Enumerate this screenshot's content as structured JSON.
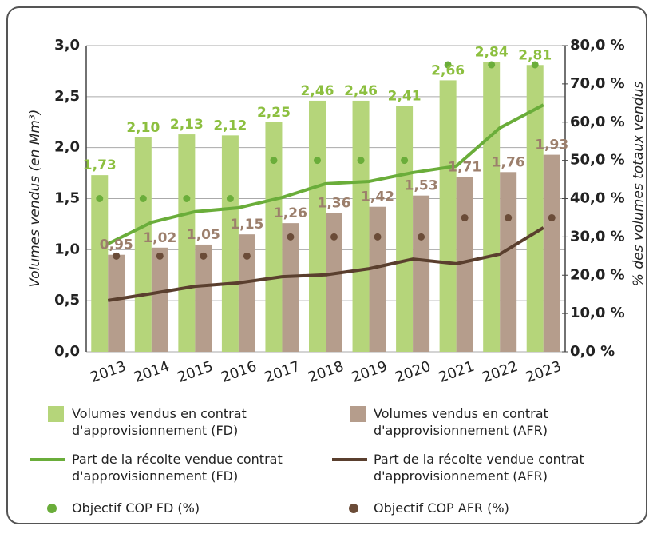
{
  "chart_data": {
    "type": "combo",
    "categories": [
      "2013",
      "2014",
      "2015",
      "2016",
      "2017",
      "2018",
      "2019",
      "2020",
      "2021",
      "2022",
      "2023"
    ],
    "ylabel": "Volumes vendus (en Mm³)",
    "y2label": "% des volumes totaux vendus",
    "ylim": [
      0,
      3
    ],
    "yticks": [
      {
        "value": 0,
        "label": "0,0"
      },
      {
        "value": 0.5,
        "label": "0,5"
      },
      {
        "value": 1,
        "label": "1,0"
      },
      {
        "value": 1.5,
        "label": "1,5"
      },
      {
        "value": 2,
        "label": "2,0"
      },
      {
        "value": 2.5,
        "label": "2,5"
      },
      {
        "value": 3,
        "label": "3,0"
      }
    ],
    "y2lim": [
      0,
      80
    ],
    "y2ticks": [
      {
        "value": 0,
        "label": "0,0 %"
      },
      {
        "value": 10,
        "label": "10,0 %"
      },
      {
        "value": 20,
        "label": "20,0 %"
      },
      {
        "value": 30,
        "label": "30,0 %"
      },
      {
        "value": 40,
        "label": "40,0 %"
      },
      {
        "value": 50,
        "label": "50,0 %"
      },
      {
        "value": 60,
        "label": "60,0 %"
      },
      {
        "value": 70,
        "label": "70,0 %"
      },
      {
        "value": 80,
        "label": "80,0 %"
      }
    ],
    "grid": true,
    "series": [
      {
        "name": "Volumes vendus en contrat d'approvisionnement (FD)",
        "type": "bar",
        "color": "#b5d57a",
        "label_color": "#8cbf3f",
        "values": [
          1.73,
          2.1,
          2.13,
          2.12,
          2.25,
          2.46,
          2.46,
          2.41,
          2.66,
          2.84,
          2.81
        ],
        "value_labels": [
          "1,73",
          "2,10",
          "2,13",
          "2,12",
          "2,25",
          "2,46",
          "2,46",
          "2,41",
          "2,66",
          "2,84",
          "2,81"
        ]
      },
      {
        "name": "Volumes vendus en contrat d'approvisionnement (AFR)",
        "type": "bar",
        "color": "#b59d8c",
        "label_color": "#9c7f6c",
        "values": [
          0.95,
          1.02,
          1.05,
          1.15,
          1.26,
          1.36,
          1.42,
          1.53,
          1.71,
          1.76,
          1.93
        ],
        "value_labels": [
          "0,95",
          "1,02",
          "1,05",
          "1,15",
          "1,26",
          "1,36",
          "1,42",
          "1,53",
          "1,71",
          "1,76",
          "1,93"
        ]
      },
      {
        "name": "Part de la récolte vendue contrat d'approvisionnement (FD)",
        "type": "line",
        "axis": "y2",
        "color": "#6aad3a",
        "values": [
          28.2,
          33.8,
          36.6,
          37.6,
          40.3,
          43.9,
          44.5,
          46.8,
          48.5,
          58.5,
          64.5
        ]
      },
      {
        "name": "Part de la récolte vendue contrat d'approvisionnement (AFR)",
        "type": "line",
        "axis": "y2",
        "color": "#5a3f2e",
        "values": [
          13.4,
          15.2,
          17.1,
          18.0,
          19.6,
          20.1,
          21.7,
          24.2,
          23.0,
          25.5,
          32.4
        ]
      },
      {
        "name": "Objectif COP FD (%)",
        "type": "scatter",
        "axis": "y2",
        "color": "#6aad3a",
        "values": [
          40,
          40,
          40,
          40,
          50,
          50,
          50,
          50,
          75,
          75,
          75
        ]
      },
      {
        "name": "Objectif COP AFR (%)",
        "type": "scatter",
        "axis": "y2",
        "color": "#6b4c38",
        "values": [
          25,
          25,
          25,
          25,
          30,
          30,
          30,
          30,
          35,
          35,
          35
        ]
      }
    ]
  }
}
